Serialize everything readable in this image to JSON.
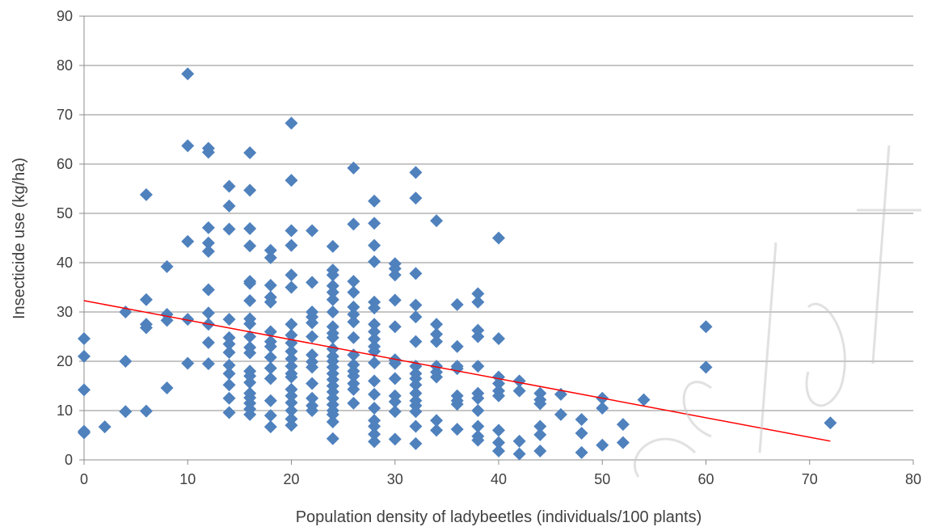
{
  "chart_data": {
    "type": "scatter",
    "title": "",
    "xlabel": "Population density of ladybeetles (individuals/100 plants)",
    "ylabel": "Insecticide use (kg/ha)",
    "xlim": [
      0,
      80
    ],
    "ylim": [
      0,
      90
    ],
    "x_ticks": [
      "0",
      "10",
      "20",
      "30",
      "40",
      "50",
      "60",
      "70",
      "80"
    ],
    "y_ticks": [
      "0",
      "10",
      "20",
      "30",
      "40",
      "50",
      "60",
      "70",
      "80",
      "90"
    ],
    "grid": "horizontal",
    "legend": "none",
    "marker_color": "#4f81bd",
    "trend_color": "#ff0000",
    "trendline": {
      "x": [
        0,
        72
      ],
      "y": [
        32.3,
        3.8
      ]
    },
    "points": [
      [
        0,
        24.6
      ],
      [
        0,
        21
      ],
      [
        0,
        14.2
      ],
      [
        0,
        5.8
      ],
      [
        0,
        5.5
      ],
      [
        2,
        6.7
      ],
      [
        4,
        30
      ],
      [
        4,
        20
      ],
      [
        4,
        9.8
      ],
      [
        6,
        53.8
      ],
      [
        6,
        32.5
      ],
      [
        6,
        27.5
      ],
      [
        6,
        26.8
      ],
      [
        6,
        9.9
      ],
      [
        8,
        39.2
      ],
      [
        8,
        29.5
      ],
      [
        8,
        28.3
      ],
      [
        8,
        14.6
      ],
      [
        10,
        78.3
      ],
      [
        10,
        63.7
      ],
      [
        10,
        44.3
      ],
      [
        10,
        28.5
      ],
      [
        10,
        19.6
      ],
      [
        12,
        63.2
      ],
      [
        12,
        62.4
      ],
      [
        12,
        47.1
      ],
      [
        12,
        44
      ],
      [
        12,
        42.3
      ],
      [
        12,
        34.5
      ],
      [
        12,
        29.8
      ],
      [
        12,
        27.5
      ],
      [
        12,
        23.8
      ],
      [
        12,
        19.5
      ],
      [
        14,
        55.5
      ],
      [
        14,
        51.5
      ],
      [
        14,
        46.8
      ],
      [
        14,
        28.5
      ],
      [
        14,
        24.8
      ],
      [
        14,
        23.5
      ],
      [
        14,
        21.8
      ],
      [
        14,
        19.2
      ],
      [
        14,
        17.5
      ],
      [
        14,
        15.2
      ],
      [
        14,
        12.5
      ],
      [
        14,
        9.6
      ],
      [
        16,
        62.3
      ],
      [
        16,
        54.7
      ],
      [
        16,
        46.9
      ],
      [
        16,
        43.4
      ],
      [
        16,
        36.2
      ],
      [
        16,
        35.8
      ],
      [
        16,
        32.3
      ],
      [
        16,
        28.6
      ],
      [
        16,
        27.6
      ],
      [
        16,
        25
      ],
      [
        16,
        22.8
      ],
      [
        16,
        21.7
      ],
      [
        16,
        18
      ],
      [
        16,
        17
      ],
      [
        16,
        15.7
      ],
      [
        16,
        13.5
      ],
      [
        16,
        12.6
      ],
      [
        16,
        11.5
      ],
      [
        16,
        10.3
      ],
      [
        16,
        9.2
      ],
      [
        18,
        42.5
      ],
      [
        18,
        41
      ],
      [
        18,
        35.4
      ],
      [
        18,
        33
      ],
      [
        18,
        32
      ],
      [
        18,
        26
      ],
      [
        18,
        24
      ],
      [
        18,
        23
      ],
      [
        18,
        20.8
      ],
      [
        18,
        18.6
      ],
      [
        18,
        16.5
      ],
      [
        18,
        12
      ],
      [
        18,
        9
      ],
      [
        18,
        6.7
      ],
      [
        20,
        68.3
      ],
      [
        20,
        56.7
      ],
      [
        20,
        46.5
      ],
      [
        20,
        43.5
      ],
      [
        20,
        37.5
      ],
      [
        20,
        35
      ],
      [
        20,
        27.5
      ],
      [
        20,
        25.3
      ],
      [
        20,
        23.7
      ],
      [
        20,
        22
      ],
      [
        20,
        20.5
      ],
      [
        20,
        19
      ],
      [
        20,
        17.5
      ],
      [
        20,
        16.8
      ],
      [
        20,
        14.3
      ],
      [
        20,
        13
      ],
      [
        20,
        11.6
      ],
      [
        20,
        10
      ],
      [
        20,
        8.3
      ],
      [
        20,
        7
      ],
      [
        22,
        46.5
      ],
      [
        22,
        36
      ],
      [
        22,
        30
      ],
      [
        22,
        29
      ],
      [
        22,
        27.8
      ],
      [
        22,
        25
      ],
      [
        22,
        21.3
      ],
      [
        22,
        19.9
      ],
      [
        22,
        18.8
      ],
      [
        22,
        15.5
      ],
      [
        22,
        12.5
      ],
      [
        22,
        11
      ],
      [
        22,
        10
      ],
      [
        24,
        43.3
      ],
      [
        24,
        38.5
      ],
      [
        24,
        37.5
      ],
      [
        24,
        35.3
      ],
      [
        24,
        34
      ],
      [
        24,
        32.5
      ],
      [
        24,
        30
      ],
      [
        24,
        27
      ],
      [
        24,
        25.7
      ],
      [
        24,
        24.8
      ],
      [
        24,
        22.5
      ],
      [
        24,
        21
      ],
      [
        24,
        20
      ],
      [
        24,
        18.8
      ],
      [
        24,
        17.5
      ],
      [
        24,
        16.3
      ],
      [
        24,
        15
      ],
      [
        24,
        13.8
      ],
      [
        24,
        12.5
      ],
      [
        24,
        11.2
      ],
      [
        24,
        10
      ],
      [
        24,
        9.2
      ],
      [
        24,
        7.7
      ],
      [
        24,
        4.3
      ],
      [
        26,
        59.2
      ],
      [
        26,
        47.8
      ],
      [
        26,
        36.2
      ],
      [
        26,
        34
      ],
      [
        26,
        31
      ],
      [
        26,
        29.5
      ],
      [
        26,
        28
      ],
      [
        26,
        24.8
      ],
      [
        26,
        21.3
      ],
      [
        26,
        19.3
      ],
      [
        26,
        18
      ],
      [
        26,
        17
      ],
      [
        26,
        15.5
      ],
      [
        26,
        14.3
      ],
      [
        26,
        11.5
      ],
      [
        28,
        52.5
      ],
      [
        28,
        48
      ],
      [
        28,
        43.5
      ],
      [
        28,
        40.2
      ],
      [
        28,
        32
      ],
      [
        28,
        30.8
      ],
      [
        28,
        27.5
      ],
      [
        28,
        26
      ],
      [
        28,
        24.5
      ],
      [
        28,
        23
      ],
      [
        28,
        22
      ],
      [
        28,
        19.7
      ],
      [
        28,
        16
      ],
      [
        28,
        13.3
      ],
      [
        28,
        10.5
      ],
      [
        28,
        8
      ],
      [
        28,
        6.8
      ],
      [
        28,
        5.2
      ],
      [
        28,
        3.7
      ],
      [
        30,
        39.8
      ],
      [
        30,
        38.8
      ],
      [
        30,
        37.5
      ],
      [
        30,
        32.4
      ],
      [
        30,
        27
      ],
      [
        30,
        20.3
      ],
      [
        30,
        19.6
      ],
      [
        30,
        16.5
      ],
      [
        30,
        13
      ],
      [
        30,
        11.8
      ],
      [
        30,
        9.8
      ],
      [
        30,
        4.2
      ],
      [
        32,
        58.3
      ],
      [
        32,
        53.1
      ],
      [
        32,
        37.8
      ],
      [
        32,
        31.4
      ],
      [
        32,
        29
      ],
      [
        32,
        24
      ],
      [
        32,
        19
      ],
      [
        32,
        17.5
      ],
      [
        32,
        16.5
      ],
      [
        32,
        15.2
      ],
      [
        32,
        13.5
      ],
      [
        32,
        12
      ],
      [
        32,
        11
      ],
      [
        32,
        9.8
      ],
      [
        32,
        6.8
      ],
      [
        32,
        3.3
      ],
      [
        34,
        48.5
      ],
      [
        34,
        27.5
      ],
      [
        34,
        25.5
      ],
      [
        34,
        24
      ],
      [
        34,
        19
      ],
      [
        34,
        17.8
      ],
      [
        34,
        16.8
      ],
      [
        34,
        8
      ],
      [
        34,
        6
      ],
      [
        36,
        31.5
      ],
      [
        36,
        23
      ],
      [
        36,
        19
      ],
      [
        36,
        18.5
      ],
      [
        36,
        13
      ],
      [
        36,
        12
      ],
      [
        36,
        11.3
      ],
      [
        36,
        6.2
      ],
      [
        38,
        33.7
      ],
      [
        38,
        32
      ],
      [
        38,
        26.3
      ],
      [
        38,
        25
      ],
      [
        38,
        19
      ],
      [
        38,
        13.5
      ],
      [
        38,
        12.5
      ],
      [
        38,
        10
      ],
      [
        38,
        6.8
      ],
      [
        38,
        4.8
      ],
      [
        38,
        4
      ],
      [
        40,
        45
      ],
      [
        40,
        24.6
      ],
      [
        40,
        16.8
      ],
      [
        40,
        15.5
      ],
      [
        40,
        14
      ],
      [
        40,
        13
      ],
      [
        40,
        6
      ],
      [
        40,
        3.5
      ],
      [
        40,
        1.8
      ],
      [
        42,
        16
      ],
      [
        42,
        14
      ],
      [
        42,
        3.8
      ],
      [
        42,
        1.2
      ],
      [
        44,
        13.5
      ],
      [
        44,
        12.2
      ],
      [
        44,
        11.4
      ],
      [
        44,
        6.8
      ],
      [
        44,
        5.1
      ],
      [
        44,
        1.8
      ],
      [
        46,
        13.3
      ],
      [
        46,
        9.2
      ],
      [
        48,
        8.2
      ],
      [
        48,
        5.4
      ],
      [
        48,
        1.5
      ],
      [
        50,
        12.5
      ],
      [
        50,
        10.5
      ],
      [
        50,
        3
      ],
      [
        52,
        7.2
      ],
      [
        52,
        3.5
      ],
      [
        54,
        12.2
      ],
      [
        60,
        27
      ],
      [
        60,
        18.8
      ],
      [
        72,
        7.5
      ]
    ]
  }
}
